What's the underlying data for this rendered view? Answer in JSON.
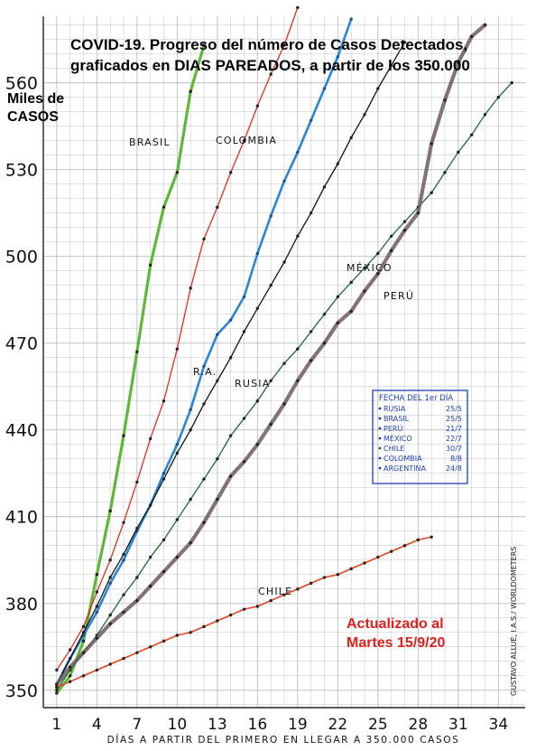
{
  "title_line1": "COVID-19. Progreso del número de Casos Detectados,",
  "title_line2": "graficados en DIAS PAREADOS, a partir de los 350.000",
  "ylabel_line1": "Miles de",
  "ylabel_line2": "CASOS",
  "updated_line1": "Actualizado al",
  "updated_line2": "Martes 15/9/20",
  "credit": "GUSTAVO ALLUÉ, I.A.S./ WORLDOMETERS",
  "legend": {
    "header": "FECHA DEL 1er DÍA",
    "entries": [
      {
        "name": "RUSIA",
        "date": "25/5"
      },
      {
        "name": "BRASIL",
        "date": "25/5"
      },
      {
        "name": "PERÚ",
        "date": "21/7"
      },
      {
        "name": "MÉXICO",
        "date": "22/7"
      },
      {
        "name": "CHILE",
        "date": "30/7"
      },
      {
        "name": "COLOMBIA",
        "date": "8/8"
      },
      {
        "name": "ARGENTINA",
        "date": "24/8"
      }
    ]
  },
  "colors": {
    "grid": "#b9bdc9",
    "axis": "#222222",
    "brasil": "#5cb836",
    "colombia": "#e02d1e",
    "argentina": "#2a86d4",
    "rusia": "#111111",
    "mexico": "#1c6a2c",
    "peru": "#6e5a5e",
    "chile": "#e6431a",
    "legend": "#1f3fb0",
    "updated": "#e0201a"
  },
  "chart_data": {
    "type": "line",
    "title": "COVID-19. Progreso del número de Casos Detectados, graficados en DIAS PAREADOS, a partir de los 350.000",
    "xlabel": "DÍAS A PARTIR DEL PRIMERO EN LLEGAR A 350.000 CASOS",
    "ylabel": "Miles de CASOS",
    "xlim": [
      0,
      36
    ],
    "ylim": [
      344,
      583
    ],
    "x_ticks": [
      1,
      4,
      7,
      10,
      13,
      16,
      19,
      22,
      25,
      28,
      31,
      34
    ],
    "y_ticks": [
      350,
      380,
      410,
      440,
      470,
      500,
      530,
      560
    ],
    "series": [
      {
        "name": "BRASIL",
        "key": "brasil",
        "label": "BRASIL",
        "x": [
          1,
          2,
          3,
          4,
          5,
          6,
          7,
          8,
          9,
          10,
          11,
          12
        ],
        "y": [
          349,
          355,
          367,
          390,
          412,
          438,
          467,
          497,
          517,
          529,
          557,
          573
        ]
      },
      {
        "name": "COLOMBIA",
        "key": "colombia",
        "label": "COLOMBIA",
        "x": [
          1,
          2,
          3,
          4,
          5,
          6,
          7,
          8,
          9,
          10,
          11,
          12,
          13,
          14,
          15,
          16,
          17,
          18,
          19
        ],
        "y": [
          357,
          364,
          372,
          384,
          395,
          408,
          422,
          437,
          450,
          468,
          489,
          506,
          517,
          529,
          540,
          552,
          563,
          573,
          586
        ]
      },
      {
        "name": "ARGENTINA",
        "key": "argentina",
        "label": "R.A.",
        "x": [
          1,
          2,
          3,
          4,
          5,
          6,
          7,
          8,
          9,
          10,
          11,
          12,
          13,
          14,
          15,
          16,
          17,
          18,
          19,
          20,
          21,
          22,
          23
        ],
        "y": [
          352,
          361,
          369,
          377,
          387,
          395,
          405,
          414,
          425,
          435,
          447,
          462,
          473,
          478,
          486,
          501,
          514,
          526,
          536,
          547,
          558,
          569,
          582
        ]
      },
      {
        "name": "RUSIA",
        "key": "rusia",
        "label": "RUSIA",
        "x": [
          1,
          2,
          3,
          4,
          5,
          6,
          7,
          8,
          9,
          10,
          11,
          12,
          13,
          14,
          15,
          16,
          17,
          18,
          19,
          20,
          21,
          22,
          23,
          24,
          25,
          26,
          27
        ],
        "y": [
          352,
          361,
          370,
          379,
          389,
          397,
          406,
          414,
          423,
          432,
          440,
          449,
          457,
          465,
          474,
          482,
          490,
          498,
          507,
          515,
          524,
          532,
          541,
          549,
          558,
          566,
          574
        ]
      },
      {
        "name": "MÉXICO",
        "key": "mexico",
        "label": "MÉXICO",
        "x": [
          1,
          2,
          3,
          4,
          5,
          6,
          7,
          8,
          9,
          10,
          11,
          12,
          13,
          14,
          15,
          16,
          17,
          18,
          19,
          20,
          21,
          22,
          23,
          24,
          25,
          26,
          27,
          28,
          29,
          30,
          31,
          32,
          33,
          34,
          35
        ],
        "y": [
          350,
          357,
          363,
          369,
          376,
          383,
          389,
          396,
          402,
          409,
          416,
          423,
          430,
          438,
          444,
          450,
          457,
          463,
          468,
          474,
          480,
          486,
          491,
          496,
          501,
          507,
          512,
          517,
          522,
          529,
          536,
          542,
          549,
          555,
          560
        ]
      },
      {
        "name": "PERÚ",
        "key": "peru",
        "label": "PERÚ",
        "x": [
          1,
          2,
          3,
          4,
          5,
          6,
          7,
          8,
          9,
          10,
          11,
          12,
          13,
          14,
          15,
          16,
          17,
          18,
          19,
          20,
          21,
          22,
          23,
          24,
          25,
          26,
          27,
          28,
          29,
          30,
          31,
          32,
          33
        ],
        "y": [
          352,
          358,
          363,
          368,
          373,
          377,
          381,
          386,
          391,
          396,
          401,
          408,
          416,
          424,
          429,
          435,
          442,
          449,
          457,
          464,
          470,
          477,
          481,
          488,
          494,
          502,
          509,
          515,
          539,
          554,
          567,
          576,
          580
        ]
      },
      {
        "name": "CHILE",
        "key": "chile",
        "label": "CHILE",
        "x": [
          1,
          2,
          3,
          4,
          5,
          6,
          7,
          8,
          9,
          10,
          11,
          12,
          13,
          14,
          15,
          16,
          17,
          18,
          19,
          20,
          21,
          22,
          23,
          24,
          25,
          26,
          27,
          28,
          29
        ],
        "y": [
          351,
          353,
          355,
          357,
          359,
          361,
          363,
          365,
          367,
          369,
          370,
          372,
          374,
          376,
          378,
          379,
          381,
          383,
          385,
          387,
          389,
          390,
          392,
          394,
          396,
          398,
          400,
          402,
          403
        ]
      }
    ]
  }
}
